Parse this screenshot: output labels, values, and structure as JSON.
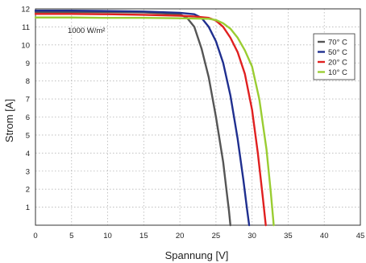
{
  "chart_data": {
    "type": "line",
    "xlabel": "Spannung [V]",
    "ylabel": "Strom [A]",
    "xlim": [
      0,
      45
    ],
    "ylim": [
      0,
      12
    ],
    "xticks": [
      "0",
      "5",
      "10",
      "15",
      "20",
      "25",
      "30",
      "35",
      "40",
      "45"
    ],
    "yticks": [
      "1",
      "2",
      "3",
      "4",
      "5",
      "6",
      "7",
      "8",
      "9",
      "10",
      "11",
      "12"
    ],
    "grid": true,
    "legend_position": "right",
    "annotation": "1000 W/m²",
    "series": [
      {
        "name": "70° C",
        "color": "#555555",
        "x": [
          0,
          5,
          10,
          15,
          20,
          21,
          22,
          23,
          24,
          25,
          26,
          26.5,
          26.8,
          27.0
        ],
        "y": [
          11.82,
          11.82,
          11.82,
          11.8,
          11.7,
          11.5,
          11.0,
          9.8,
          8.2,
          6.0,
          3.5,
          1.8,
          0.8,
          0
        ]
      },
      {
        "name": "50° C",
        "color": "#1f2f8f",
        "x": [
          0,
          5,
          10,
          15,
          20,
          22,
          23,
          24,
          25,
          26,
          27,
          28,
          28.8,
          29.3,
          29.6
        ],
        "y": [
          11.9,
          11.9,
          11.88,
          11.85,
          11.78,
          11.7,
          11.5,
          11.0,
          10.2,
          9.0,
          7.2,
          4.8,
          2.5,
          0.9,
          0
        ]
      },
      {
        "name": "20° C",
        "color": "#e02020",
        "x": [
          0,
          5,
          10,
          15,
          20,
          22,
          24,
          25,
          26,
          27,
          28,
          29,
          30,
          30.8,
          31.5,
          31.9
        ],
        "y": [
          11.72,
          11.72,
          11.7,
          11.67,
          11.62,
          11.58,
          11.5,
          11.35,
          11.0,
          10.4,
          9.6,
          8.4,
          6.4,
          4.0,
          1.5,
          0
        ]
      },
      {
        "name": "10° C",
        "color": "#9acd32",
        "x": [
          0,
          5,
          10,
          15,
          20,
          24,
          25,
          26,
          27,
          28,
          29,
          30,
          31,
          32,
          32.6,
          33.0
        ],
        "y": [
          11.52,
          11.52,
          11.5,
          11.5,
          11.48,
          11.45,
          11.38,
          11.2,
          10.9,
          10.4,
          9.7,
          8.8,
          7.0,
          4.2,
          1.8,
          0
        ]
      }
    ]
  }
}
